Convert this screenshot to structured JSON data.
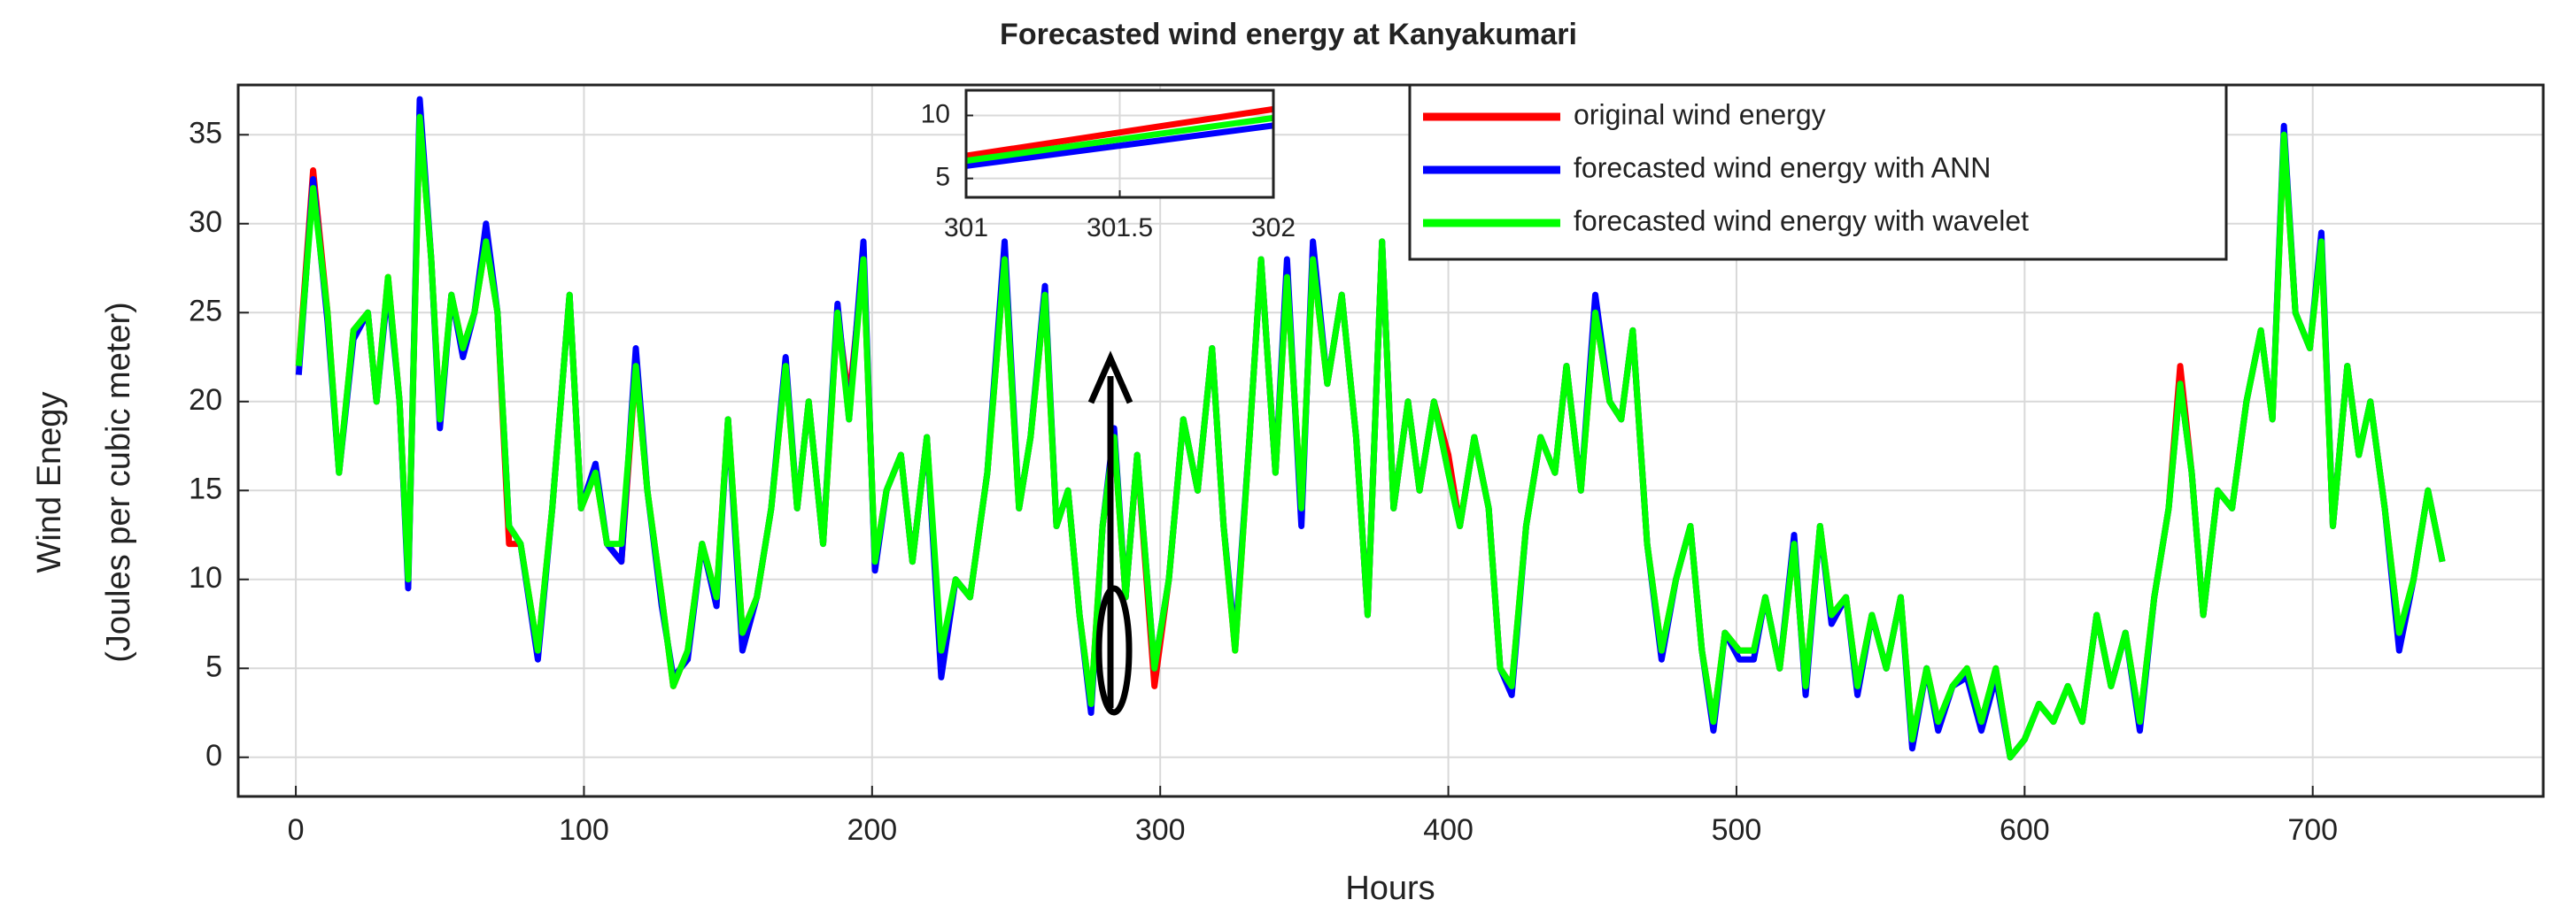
{
  "chart_data": [
    {
      "type": "line",
      "title": "Forecasted wind energy at Kanyakumari",
      "xlabel": "Hours",
      "ylabel": [
        "Wind Enegy",
        "(Joules per cubic meter)"
      ],
      "x": [
        1,
        6,
        11,
        15,
        20,
        25,
        28,
        32,
        36,
        39,
        43,
        47,
        50,
        54,
        58,
        62,
        66,
        70,
        74,
        78,
        84,
        89,
        95,
        99,
        104,
        108,
        113,
        118,
        122,
        127,
        131,
        136,
        141,
        146,
        150,
        155,
        160,
        165,
        170,
        174,
        178,
        183,
        188,
        192,
        197,
        201,
        205,
        210,
        214,
        219,
        224,
        229,
        234,
        240,
        246,
        251,
        255,
        260,
        264,
        268,
        272,
        276,
        280,
        284,
        288,
        292,
        298,
        303,
        308,
        313,
        318,
        322,
        326,
        331,
        335,
        340,
        344,
        349,
        353,
        358,
        363,
        368,
        372,
        377,
        381,
        386,
        390,
        395,
        400,
        404,
        409,
        414,
        418,
        422,
        427,
        432,
        437,
        441,
        446,
        451,
        456,
        460,
        464,
        469,
        474,
        479,
        484,
        488,
        492,
        496,
        501,
        506,
        510,
        515,
        520,
        524,
        529,
        533,
        538,
        542,
        547,
        552,
        557,
        561,
        566,
        570,
        575,
        580,
        585,
        590,
        595,
        600,
        605,
        610,
        615,
        620,
        625,
        630,
        635,
        640,
        645,
        650,
        654,
        658,
        662,
        667,
        672,
        677,
        682,
        686,
        690,
        694,
        699,
        703,
        707,
        712,
        716,
        720,
        725,
        730,
        735,
        740,
        745
      ],
      "series": [
        {
          "name": "original wind energy",
          "color": "#ff0000",
          "values": [
            22,
            33,
            25,
            16,
            24,
            25,
            20,
            27,
            20,
            10,
            36,
            28,
            19,
            26,
            23,
            25,
            29,
            25,
            12,
            12,
            6,
            14,
            26,
            14,
            16,
            12,
            11,
            22,
            15,
            9,
            4,
            6,
            12,
            9,
            19,
            7,
            9,
            14,
            22,
            14,
            20,
            12,
            25,
            20,
            28,
            11,
            15,
            17,
            11,
            18,
            5,
            10,
            9,
            16,
            28,
            14,
            18,
            26,
            13,
            15,
            8,
            3,
            13,
            18,
            9,
            17,
            4,
            10,
            19,
            15,
            23,
            13,
            6,
            18,
            28,
            16,
            27,
            14,
            28,
            21,
            26,
            18,
            8,
            29,
            14,
            20,
            15,
            20,
            17,
            13,
            18,
            14,
            5,
            4,
            13,
            18,
            16,
            22,
            15,
            25,
            20,
            19,
            24,
            12,
            6,
            10,
            13,
            6,
            2,
            7,
            6,
            6,
            9,
            5,
            12,
            4,
            13,
            8,
            9,
            4,
            8,
            5,
            9,
            1,
            5,
            2,
            4,
            5,
            2,
            5,
            0,
            1,
            3,
            2,
            4,
            2,
            8,
            4,
            7,
            2,
            9,
            14,
            22,
            16,
            8,
            15,
            14,
            20,
            24,
            19,
            35,
            25,
            23,
            29,
            13,
            22,
            17,
            20,
            14,
            7,
            10,
            15,
            11
          ]
        },
        {
          "name": "forecasted wind energy with ANN",
          "color": "#0000ff",
          "values": [
            21.5,
            32.5,
            24.5,
            16,
            23.5,
            25,
            20,
            26.5,
            20,
            9.5,
            37,
            28,
            18.5,
            26,
            22.5,
            25,
            30,
            25,
            13,
            12,
            5.5,
            14,
            26,
            14,
            16.5,
            12,
            11,
            23,
            15,
            8.5,
            4.5,
            5.5,
            12,
            8.5,
            19,
            6,
            9,
            14,
            22.5,
            14,
            20,
            12,
            25.5,
            19,
            29,
            10.5,
            15,
            17,
            11,
            18,
            4.5,
            10,
            9,
            16,
            29,
            14,
            18,
            26.5,
            13,
            15,
            8,
            2.5,
            13,
            18.5,
            9,
            17,
            5,
            10,
            19,
            15,
            23,
            13,
            6.5,
            18,
            28,
            16,
            28,
            13,
            29,
            21,
            26,
            18,
            8,
            29,
            14,
            20,
            15,
            20,
            16,
            13,
            18,
            14,
            5,
            3.5,
            13,
            18,
            16,
            22,
            15,
            26,
            20,
            19,
            24,
            12,
            5.5,
            10,
            13,
            6,
            1.5,
            7,
            5.5,
            5.5,
            9,
            5,
            12.5,
            3.5,
            13,
            7.5,
            9,
            3.5,
            8,
            5,
            9,
            0.5,
            5,
            1.5,
            4,
            4.5,
            1.5,
            4.5,
            0,
            1,
            3,
            2,
            4,
            2,
            8,
            4,
            7,
            1.5,
            9,
            14,
            21,
            16,
            8,
            15,
            14,
            20,
            24,
            19,
            35.5,
            25,
            23,
            29.5,
            13,
            22,
            17,
            20,
            14,
            6,
            10,
            15,
            11
          ]
        },
        {
          "name": "forecasted wind energy with wavelet",
          "color": "#00ff00",
          "values": [
            22,
            32,
            25,
            16,
            24,
            25,
            20,
            27,
            20,
            10,
            36,
            28,
            19,
            26,
            23,
            25,
            29,
            25,
            13,
            12,
            6,
            14,
            26,
            14,
            16,
            12,
            12,
            22,
            15,
            9,
            4,
            6,
            12,
            9,
            19,
            7,
            9,
            14,
            22,
            14,
            20,
            12,
            25,
            19,
            28,
            11,
            15,
            17,
            11,
            18,
            6,
            10,
            9,
            16,
            28,
            14,
            18,
            26,
            13,
            15,
            8,
            3,
            13,
            18,
            9,
            17,
            5,
            10,
            19,
            15,
            23,
            13,
            6,
            18,
            28,
            16,
            27,
            14,
            28,
            21,
            26,
            18,
            8,
            29,
            14,
            20,
            15,
            20,
            16,
            13,
            18,
            14,
            5,
            4,
            13,
            18,
            16,
            22,
            15,
            25,
            20,
            19,
            24,
            12,
            6,
            10,
            13,
            6,
            2,
            7,
            6,
            6,
            9,
            5,
            12,
            4,
            13,
            8,
            9,
            4,
            8,
            5,
            9,
            1,
            5,
            2,
            4,
            5,
            2,
            5,
            0,
            1,
            3,
            2,
            4,
            2,
            8,
            4,
            7,
            2,
            9,
            14,
            21,
            16,
            8,
            15,
            14,
            20,
            24,
            19,
            35,
            25,
            23,
            29,
            13,
            22,
            17,
            20,
            14,
            7,
            10,
            15,
            11
          ]
        }
      ],
      "xlim": [
        -20,
        780
      ],
      "ylim": [
        -2.2,
        37.8
      ],
      "xticks": [
        0,
        100,
        200,
        300,
        400,
        500,
        600,
        700
      ],
      "yticks": [
        0,
        5,
        10,
        15,
        20,
        25,
        30,
        35
      ],
      "grid": true,
      "legend": "upper right"
    },
    {
      "type": "line",
      "x": [
        301,
        302
      ],
      "series": [
        {
          "color": "#ff0000",
          "values": [
            6.8,
            10.5
          ]
        },
        {
          "color": "#0000ff",
          "values": [
            6.0,
            9.2
          ]
        },
        {
          "color": "#00ff00",
          "values": [
            6.4,
            9.8
          ]
        }
      ],
      "xlim": [
        301,
        302
      ],
      "ylim": [
        3.5,
        12
      ],
      "xticks": [
        301,
        301.5,
        302
      ],
      "yticks": [
        5,
        10
      ],
      "grid": true
    }
  ]
}
